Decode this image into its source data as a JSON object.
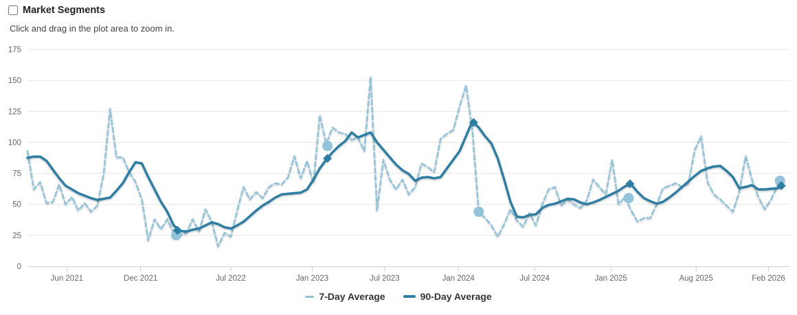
{
  "chart_data": {
    "type": "line",
    "title": "Market Segments",
    "title_checkbox_checked": false,
    "subtitle": "Click and drag in the plot area to zoom in.",
    "x_axis": {
      "note": "x unit = months since Mar 2021; axis spans Mar 2021 to Mar 2026",
      "range": [
        0,
        60
      ],
      "ticks": [
        {
          "pos": 3.1,
          "label": "Jun 2021"
        },
        {
          "pos": 8.9,
          "label": "Dec 2021"
        },
        {
          "pos": 16.0,
          "label": "Jul 2022"
        },
        {
          "pos": 22.4,
          "label": "Jan 2023"
        },
        {
          "pos": 28.1,
          "label": "Jul 2023"
        },
        {
          "pos": 33.9,
          "label": "Jan 2024"
        },
        {
          "pos": 39.9,
          "label": "Jul 2024"
        },
        {
          "pos": 45.9,
          "label": "Jan 2025"
        },
        {
          "pos": 52.6,
          "label": "Aug 2025"
        },
        {
          "pos": 58.3,
          "label": "Feb 2026"
        }
      ]
    },
    "y_axis": {
      "range": [
        0,
        175
      ],
      "tick_step": 25,
      "tick_labels": [
        "0",
        "25",
        "50",
        "75",
        "100",
        "125",
        "150",
        "175"
      ]
    },
    "grid": true,
    "legend_position": "bottom-center",
    "series": [
      {
        "name": "7-Day Average",
        "color": "#92c3d8",
        "dash": "7,4",
        "stroke_width": 2.6,
        "x_start": 0,
        "x_step": 0.5,
        "values": [
          93,
          62,
          68,
          51,
          52,
          66,
          50,
          56,
          45,
          51,
          44,
          49,
          75,
          127,
          88,
          88,
          76,
          68,
          54,
          21,
          38,
          30,
          38,
          27,
          25,
          27,
          38,
          28,
          46,
          36,
          16,
          27,
          24,
          45,
          64,
          54,
          60,
          55,
          64,
          67,
          66,
          72,
          89,
          71,
          85,
          67,
          122,
          99,
          112,
          108,
          107,
          102,
          104,
          93,
          153,
          45,
          86,
          70,
          62,
          70,
          58,
          64,
          83,
          80,
          76,
          103,
          107,
          110,
          129,
          146,
          110,
          44,
          39,
          33,
          24,
          34,
          46,
          37,
          32,
          43,
          33,
          50,
          62,
          64,
          49,
          54,
          50,
          47,
          53,
          70,
          64,
          58,
          86,
          50,
          56,
          45,
          36,
          39,
          39,
          50,
          63,
          65,
          67,
          64,
          67,
          94,
          105,
          68,
          58,
          54,
          49,
          44,
          60,
          89,
          70,
          56,
          46,
          54,
          65,
          69
        ],
        "markers": {
          "shape": "circle",
          "radius": 7.5,
          "points": [
            [
              11.7,
              25
            ],
            [
              23.6,
              97
            ],
            [
              35.5,
              44
            ],
            [
              47.3,
              55
            ],
            [
              59.2,
              69
            ]
          ]
        }
      },
      {
        "name": "90-Day Average",
        "color": "#2d7ea3",
        "dash": null,
        "stroke_width": 3.5,
        "x_start": 0,
        "x_step": 0.5,
        "values": [
          87.5,
          88.5,
          88.5,
          85,
          78,
          71,
          65,
          62,
          59,
          57,
          55,
          53.5,
          54.5,
          55.5,
          61,
          67,
          76,
          84,
          83,
          72,
          62,
          52,
          44,
          33,
          28.5,
          28,
          29.5,
          30.5,
          33,
          35.5,
          34,
          31.5,
          30.5,
          33,
          36,
          40.5,
          45,
          49,
          52,
          55.5,
          58,
          58.5,
          59,
          59.5,
          62,
          70,
          79,
          86,
          92,
          97,
          101,
          108,
          104,
          106,
          108,
          100,
          94,
          88,
          82,
          77.5,
          74.5,
          69,
          71.5,
          72,
          71,
          72,
          79,
          86,
          93,
          105,
          117,
          112,
          105,
          99,
          87,
          70,
          52,
          40,
          39.5,
          41.5,
          42,
          47,
          49.5,
          50.5,
          52.5,
          54.5,
          54,
          51.5,
          50,
          51.5,
          53.5,
          56,
          58.5,
          61,
          64.5,
          66,
          60,
          55,
          52.5,
          50.5,
          52,
          55.5,
          59.5,
          64,
          68.5,
          73,
          77,
          79,
          80.5,
          81,
          77,
          72,
          63,
          64,
          65.5,
          62,
          62,
          62.5,
          63,
          65
        ],
        "markers": {
          "shape": "diamond",
          "radius": 6.5,
          "points": [
            [
              11.8,
              29
            ],
            [
              23.6,
              87
            ],
            [
              35.1,
              116
            ],
            [
              47.4,
              66.5
            ],
            [
              59.3,
              65
            ]
          ]
        }
      }
    ]
  },
  "colors": {
    "grid_line": "#e6e6e6",
    "axis_line": "#ccd2da",
    "tick_mark": "#c3c9d0",
    "axis_label": "#666666",
    "title_text": "#222222",
    "subtitle_text": "#444444",
    "legend_text": "#333333",
    "background": "#ffffff"
  }
}
